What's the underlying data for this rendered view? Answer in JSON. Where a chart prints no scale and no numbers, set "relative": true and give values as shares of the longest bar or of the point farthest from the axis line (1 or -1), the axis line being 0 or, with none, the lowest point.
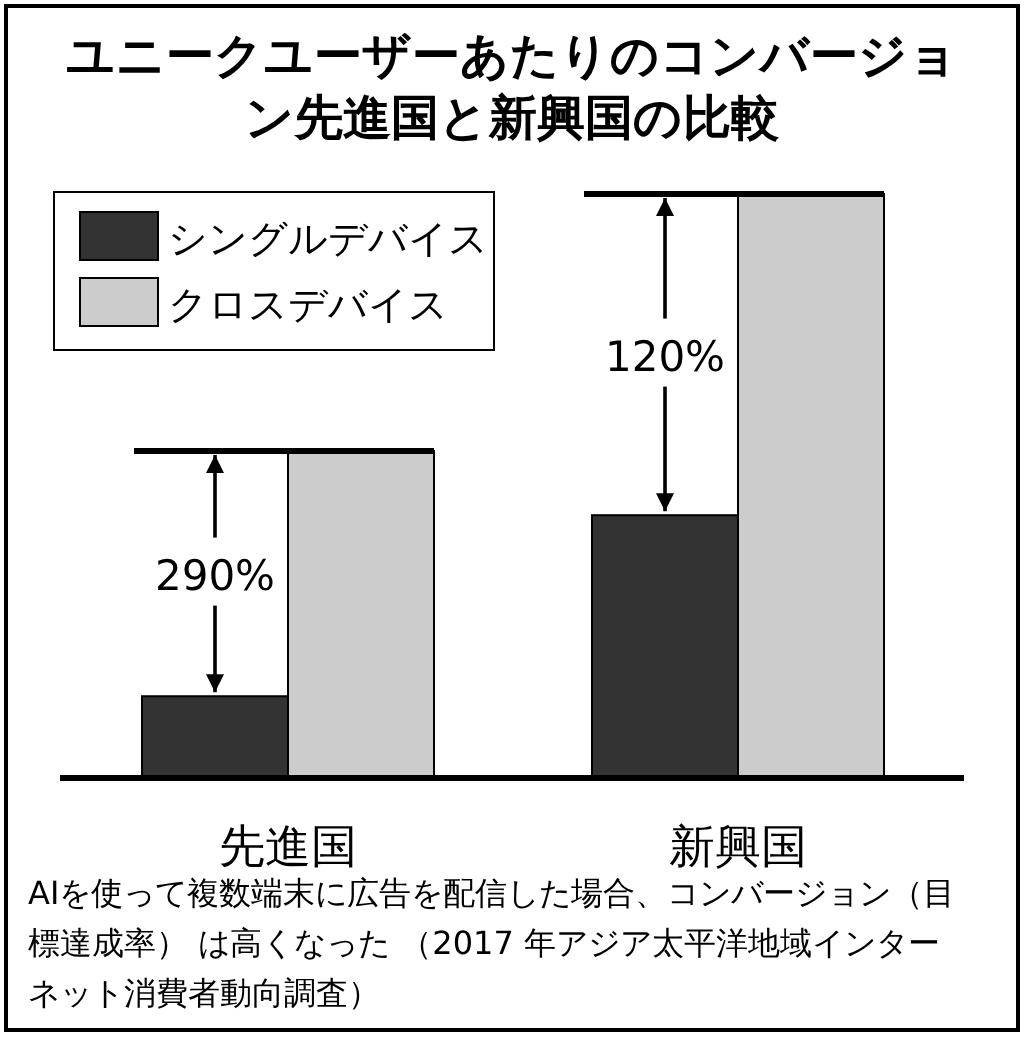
{
  "chart_data": {
    "type": "bar",
    "relative": true,
    "title": "ユニークユーザーあたりのコンバージョン先進国と新興国の比較",
    "categories": [
      "先進国",
      "新興国"
    ],
    "series": [
      {
        "name": "シングルデバイス",
        "color": "#333333",
        "values": [
          0.14,
          0.45
        ]
      },
      {
        "name": "クロスデバイス",
        "color": "#cccccc",
        "values": [
          0.56,
          1
        ]
      }
    ],
    "legend": "top left",
    "annotations": [
      "290%",
      "120%",
      "AIを使って複数端末に広告を配信した場合、コンバージョン（目標達成率） は高くなった （2017 年アジア太平洋地域インターネット消費者動向調査）"
    ]
  }
}
